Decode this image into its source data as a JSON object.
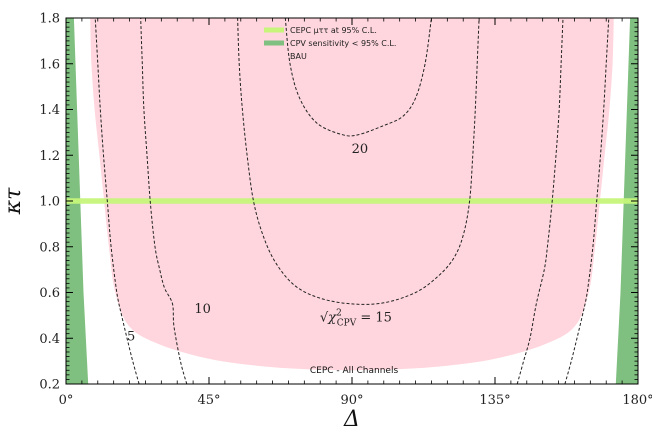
{
  "chart_data": {
    "type": "line",
    "xlabel": "Δ",
    "ylabel": "κτ",
    "xlim": [
      0,
      180
    ],
    "ylim": [
      0.2,
      1.8
    ],
    "x_ticks": [
      0,
      45,
      90,
      135,
      180
    ],
    "x_tick_labels": [
      "0°",
      "45°",
      "90°",
      "135°",
      "180°"
    ],
    "y_ticks": [
      0.2,
      0.4,
      0.6,
      0.8,
      1.0,
      1.2,
      1.4,
      1.6,
      1.8
    ],
    "y_tick_labels": [
      "0.2",
      "0.4",
      "0.6",
      "0.8",
      "1.0",
      "1.2",
      "1.4",
      "1.6",
      "1.8"
    ],
    "legend": {
      "position": "top-center",
      "entries": [
        {
          "label": "CEPC μττ at 95% C.L.",
          "color": "#c6f57a"
        },
        {
          "label": "CPV sensitivity < 95% C.L.",
          "color": "#7fbf7f"
        },
        {
          "label": "BAU",
          "color": "#ffd6de"
        }
      ]
    },
    "annotation": "CEPC - All Channels",
    "colors": {
      "bau": "#ffd6de",
      "cpv": "#7fbf7f",
      "cepc_band": "#c6f57a",
      "contour": "#222222"
    },
    "cepc_band": {
      "center": 1.0,
      "half_width": 0.012
    },
    "bau_region": {
      "left": [
        [
          7.6,
          1.8
        ],
        [
          8,
          1.6
        ],
        [
          9,
          1.4
        ],
        [
          10.5,
          1.2
        ],
        [
          12,
          1.0
        ],
        [
          13.5,
          0.8
        ],
        [
          15.5,
          0.6
        ],
        [
          20,
          0.45
        ],
        [
          30,
          0.37
        ],
        [
          45,
          0.31
        ],
        [
          60,
          0.28
        ],
        [
          75,
          0.265
        ],
        [
          90,
          0.26
        ]
      ],
      "right": [
        [
          90,
          0.26
        ],
        [
          105,
          0.265
        ],
        [
          120,
          0.28
        ],
        [
          135,
          0.31
        ],
        [
          150,
          0.37
        ],
        [
          160,
          0.45
        ],
        [
          164.5,
          0.6
        ],
        [
          166.5,
          0.8
        ],
        [
          168,
          1.0
        ],
        [
          169.5,
          1.2
        ],
        [
          171,
          1.4
        ],
        [
          172,
          1.6
        ],
        [
          172.4,
          1.8
        ]
      ]
    },
    "cpv_region": {
      "left": [
        [
          0,
          0.2
        ],
        [
          0,
          1.8
        ],
        [
          2.5,
          1.8
        ],
        [
          3.5,
          1.4
        ],
        [
          4.5,
          1.0
        ],
        [
          5.5,
          0.6
        ],
        [
          7,
          0.2
        ]
      ],
      "right": [
        [
          173,
          0.2
        ],
        [
          174.5,
          0.6
        ],
        [
          175.5,
          1.0
        ],
        [
          176.5,
          1.4
        ],
        [
          177.5,
          1.8
        ],
        [
          180,
          1.8
        ],
        [
          180,
          0.2
        ]
      ]
    },
    "contours": [
      {
        "label": "5",
        "points": [
          [
            23,
            0.2
          ],
          [
            21,
            0.3
          ],
          [
            19.2,
            0.4
          ],
          [
            17.5,
            0.5
          ],
          [
            16,
            0.6
          ],
          [
            14.2,
            0.8
          ],
          [
            13,
            1.0
          ],
          [
            11.8,
            1.2
          ],
          [
            10.8,
            1.4
          ],
          [
            10,
            1.6
          ],
          [
            9.2,
            1.8
          ]
        ]
      },
      {
        "label": "5",
        "points": [
          [
            157,
            0.2
          ],
          [
            159,
            0.3
          ],
          [
            160.8,
            0.4
          ],
          [
            162.5,
            0.5
          ],
          [
            164,
            0.6
          ],
          [
            165.8,
            0.8
          ],
          [
            167,
            1.0
          ],
          [
            168.2,
            1.2
          ],
          [
            169.2,
            1.4
          ],
          [
            170,
            1.6
          ],
          [
            170.8,
            1.8
          ]
        ]
      },
      {
        "label": "10",
        "points": [
          [
            38,
            0.2
          ],
          [
            36,
            0.3
          ],
          [
            34,
            0.45
          ],
          [
            33.5,
            0.55
          ],
          [
            31,
            0.62
          ],
          [
            29.5,
            0.7
          ],
          [
            28,
            0.8
          ],
          [
            26.5,
            1.0
          ],
          [
            25.5,
            1.2
          ],
          [
            24.5,
            1.4
          ],
          [
            24,
            1.6
          ],
          [
            23.5,
            1.8
          ]
        ]
      },
      {
        "label": "10",
        "points": [
          [
            142,
            0.2
          ],
          [
            144,
            0.3
          ],
          [
            146,
            0.4
          ],
          [
            148,
            0.55
          ],
          [
            150.5,
            0.7
          ],
          [
            151.5,
            0.8
          ],
          [
            153,
            1.0
          ],
          [
            154.2,
            1.2
          ],
          [
            155.2,
            1.4
          ],
          [
            155.8,
            1.6
          ],
          [
            156.4,
            1.8
          ]
        ]
      },
      {
        "label": "√χ²CPV = 15",
        "points": [
          [
            54,
            1.8
          ],
          [
            54.5,
            1.6
          ],
          [
            55.5,
            1.4
          ],
          [
            57,
            1.2
          ],
          [
            59,
            1.0
          ],
          [
            62,
            0.85
          ],
          [
            66,
            0.73
          ],
          [
            72,
            0.63
          ],
          [
            80,
            0.575
          ],
          [
            90,
            0.55
          ],
          [
            100,
            0.555
          ],
          [
            110,
            0.6
          ],
          [
            117,
            0.67
          ],
          [
            122,
            0.75
          ],
          [
            125,
            0.85
          ],
          [
            127,
            1.0
          ],
          [
            128,
            1.2
          ],
          [
            128.8,
            1.4
          ],
          [
            129.4,
            1.6
          ],
          [
            130,
            1.8
          ]
        ]
      },
      {
        "label": "20",
        "points": [
          [
            69,
            1.8
          ],
          [
            70.5,
            1.6
          ],
          [
            73.5,
            1.45
          ],
          [
            79,
            1.34
          ],
          [
            87,
            1.29
          ],
          [
            92,
            1.29
          ],
          [
            100,
            1.33
          ],
          [
            106,
            1.37
          ],
          [
            110,
            1.45
          ],
          [
            113,
            1.6
          ],
          [
            115,
            1.8
          ]
        ]
      }
    ],
    "contour_labels": [
      {
        "text": "5",
        "x": 20.5,
        "y": 0.39
      },
      {
        "text": "10",
        "x": 43,
        "y": 0.51
      },
      {
        "text": "20",
        "x": 92.5,
        "y": 1.21
      }
    ],
    "formula_label": {
      "prefix": "√",
      "symbol": "χ",
      "sup": "2",
      "sub": "CPV",
      "suffix": " = 15",
      "x": 95,
      "y": 0.5
    }
  }
}
